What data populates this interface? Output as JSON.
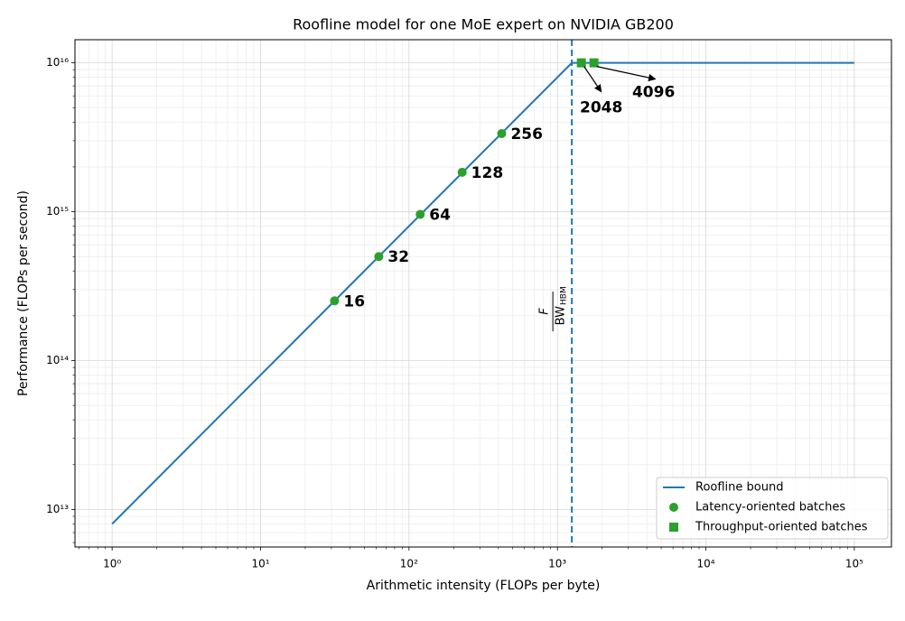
{
  "chart_data": {
    "type": "scatter",
    "title": "Roofline model for one MoE expert on NVIDIA GB200",
    "x_label": "Arithmetic intensity (FLOPs per byte)",
    "y_label": "Performance (FLOPs per second)",
    "x_scale": "log",
    "y_scale": "log",
    "xlim": [
      0.562,
      177828
    ],
    "ylim": [
      5600000000000.0,
      1.43e+16
    ],
    "xticks": [
      {
        "value": 1,
        "label": "10⁰"
      },
      {
        "value": 10,
        "label": "10¹"
      },
      {
        "value": 100,
        "label": "10²"
      },
      {
        "value": 1000,
        "label": "10³"
      },
      {
        "value": 10000,
        "label": "10⁴"
      },
      {
        "value": 100000,
        "label": "10⁵"
      }
    ],
    "yticks": [
      {
        "value": 10000000000000.0,
        "label": "10¹³"
      },
      {
        "value": 100000000000000.0,
        "label": "10¹⁴"
      },
      {
        "value": 1000000000000000.0,
        "label": "10¹⁵"
      },
      {
        "value": 1e+16,
        "label": "10¹⁶"
      }
    ],
    "grid": true,
    "minor_grid": true,
    "legend": "lower right",
    "ridge": {
      "x": 1250,
      "color": "#1f77b4",
      "label_numerator": "F",
      "label_denominator": "BW",
      "label_subscript": "HBM"
    },
    "series": [
      {
        "name": "Roofline bound",
        "kind": "line",
        "color": "#1f77b4",
        "x": [
          1,
          1250,
          100000
        ],
        "values": [
          8000000000000.0,
          1e+16,
          1e+16
        ]
      },
      {
        "name": "Latency-oriented batches",
        "kind": "circle",
        "color": "#2ca02c",
        "x": [
          31.5,
          62.6,
          119,
          228,
          421
        ],
        "values": [
          252000000000000.0,
          500000000000000.0,
          960000000000000.0,
          1840000000000000.0,
          3350000000000000.0
        ],
        "batch_sizes": [
          16,
          32,
          64,
          128,
          256
        ]
      },
      {
        "name": "Throughput-oriented batches",
        "kind": "square",
        "color": "#2ca02c",
        "x": [
          1449,
          1762
        ],
        "values": [
          1e+16,
          1e+16
        ],
        "batch_sizes": [
          2048,
          4096
        ]
      }
    ]
  }
}
